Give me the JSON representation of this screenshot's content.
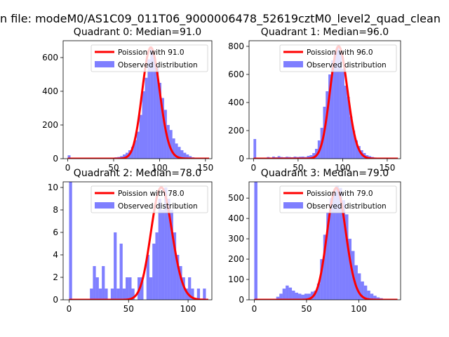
{
  "figure": {
    "suptitle": "n file: modeM0/AS1C09_011T06_9000006478_52619cztM0_level2_quad_clean"
  },
  "colors": {
    "bars": "#0000ff",
    "bar_alpha": 0.5,
    "line": "#ff0000"
  },
  "chart_data": [
    {
      "type": "bar",
      "title": "Quadrant 0: Median=91.0",
      "xlim": [
        -5,
        157
      ],
      "ylim": [
        0,
        700
      ],
      "xticks": [
        0,
        50,
        100,
        150
      ],
      "yticks": [
        0,
        200,
        400,
        600
      ],
      "legend": [
        "Poission with 91.0",
        "Observed distribution"
      ],
      "legend_position": "top-right",
      "median": 91,
      "bin_width": 3,
      "bars": [
        [
          0,
          20
        ],
        [
          33,
          2
        ],
        [
          36,
          3
        ],
        [
          39,
          3
        ],
        [
          42,
          4
        ],
        [
          45,
          5
        ],
        [
          48,
          6
        ],
        [
          51,
          8
        ],
        [
          54,
          10
        ],
        [
          57,
          15
        ],
        [
          60,
          25
        ],
        [
          63,
          35
        ],
        [
          66,
          50
        ],
        [
          69,
          70
        ],
        [
          72,
          110
        ],
        [
          75,
          160
        ],
        [
          78,
          260
        ],
        [
          81,
          400
        ],
        [
          84,
          480
        ],
        [
          87,
          590
        ],
        [
          90,
          650
        ],
        [
          93,
          600
        ],
        [
          96,
          540
        ],
        [
          99,
          450
        ],
        [
          102,
          360
        ],
        [
          105,
          290
        ],
        [
          108,
          200
        ],
        [
          111,
          170
        ],
        [
          114,
          120
        ],
        [
          117,
          90
        ],
        [
          120,
          70
        ],
        [
          123,
          50
        ],
        [
          126,
          35
        ],
        [
          129,
          25
        ],
        [
          132,
          15
        ],
        [
          135,
          8
        ],
        [
          138,
          5
        ],
        [
          141,
          3
        ],
        [
          144,
          2
        ],
        [
          147,
          1
        ]
      ],
      "poisson_peak": 660
    },
    {
      "type": "bar",
      "title": "Quadrant 1: Median=96.0",
      "xlim": [
        -5,
        165
      ],
      "ylim": [
        0,
        840
      ],
      "xticks": [
        0,
        50,
        100,
        150
      ],
      "yticks": [
        0,
        200,
        400,
        600,
        800
      ],
      "legend": [
        "Poission with 96.0",
        "Observed distribution"
      ],
      "legend_position": "top-right",
      "median": 96,
      "bin_width": 3,
      "bars": [
        [
          0,
          140
        ],
        [
          15,
          12
        ],
        [
          18,
          8
        ],
        [
          21,
          15
        ],
        [
          24,
          10
        ],
        [
          27,
          18
        ],
        [
          30,
          12
        ],
        [
          33,
          10
        ],
        [
          36,
          14
        ],
        [
          39,
          12
        ],
        [
          42,
          10
        ],
        [
          45,
          15
        ],
        [
          48,
          12
        ],
        [
          51,
          14
        ],
        [
          54,
          15
        ],
        [
          57,
          12
        ],
        [
          60,
          20
        ],
        [
          63,
          25
        ],
        [
          66,
          40
        ],
        [
          69,
          70
        ],
        [
          72,
          130
        ],
        [
          75,
          220
        ],
        [
          78,
          370
        ],
        [
          81,
          480
        ],
        [
          84,
          600
        ],
        [
          87,
          700
        ],
        [
          90,
          760
        ],
        [
          93,
          800
        ],
        [
          96,
          760
        ],
        [
          99,
          640
        ],
        [
          102,
          520
        ],
        [
          105,
          440
        ],
        [
          108,
          300
        ],
        [
          111,
          200
        ],
        [
          114,
          130
        ],
        [
          117,
          90
        ],
        [
          120,
          60
        ],
        [
          123,
          40
        ],
        [
          126,
          25
        ],
        [
          129,
          18
        ],
        [
          132,
          12
        ],
        [
          135,
          8
        ],
        [
          138,
          5
        ]
      ],
      "poisson_peak": 800
    },
    {
      "type": "bar",
      "title": "Quadrant 2: Median=78.0",
      "xlim": [
        -5,
        120
      ],
      "ylim": [
        0,
        10.5
      ],
      "xticks": [
        0,
        50,
        100
      ],
      "yticks": [
        0,
        2,
        4,
        6,
        8,
        10
      ],
      "legend": [
        "Poission with 78.0",
        "Observed distribution"
      ],
      "legend_position": "top-right",
      "median": 78,
      "bin_width": 2.5,
      "bars": [
        [
          0,
          10.5
        ],
        [
          17.5,
          1
        ],
        [
          20,
          3
        ],
        [
          22.5,
          2
        ],
        [
          25,
          1
        ],
        [
          27.5,
          3
        ],
        [
          30,
          1
        ],
        [
          32.5,
          0
        ],
        [
          35,
          1
        ],
        [
          37.5,
          6
        ],
        [
          40,
          1
        ],
        [
          42.5,
          5
        ],
        [
          45,
          1
        ],
        [
          47.5,
          2
        ],
        [
          50,
          2
        ],
        [
          52.5,
          1
        ],
        [
          55,
          0
        ],
        [
          57.5,
          2
        ],
        [
          60,
          2
        ],
        [
          62.5,
          0
        ],
        [
          65,
          4
        ],
        [
          67.5,
          2
        ],
        [
          70,
          5
        ],
        [
          72.5,
          6
        ],
        [
          75,
          9
        ],
        [
          77.5,
          8
        ],
        [
          80,
          10
        ],
        [
          82.5,
          9
        ],
        [
          85,
          8
        ],
        [
          87.5,
          6
        ],
        [
          90,
          4
        ],
        [
          92.5,
          3
        ],
        [
          95,
          2
        ],
        [
          97.5,
          1
        ],
        [
          100,
          2
        ],
        [
          102.5,
          1
        ],
        [
          105,
          0
        ],
        [
          107.5,
          1
        ],
        [
          110,
          0
        ],
        [
          112.5,
          1
        ]
      ],
      "poisson_peak": 10
    },
    {
      "type": "bar",
      "title": "Quadrant 3: Median=79.0",
      "xlim": [
        -5,
        140
      ],
      "ylim": [
        0,
        580
      ],
      "xticks": [
        0,
        50,
        100
      ],
      "yticks": [
        0,
        100,
        200,
        300,
        400,
        500
      ],
      "legend": [
        "Poission with 79.0",
        "Observed distribution"
      ],
      "legend_position": "top-right",
      "median": 79,
      "bin_width": 3,
      "bars": [
        [
          0,
          580
        ],
        [
          21,
          15
        ],
        [
          24,
          30
        ],
        [
          27,
          55
        ],
        [
          30,
          70
        ],
        [
          33,
          60
        ],
        [
          36,
          45
        ],
        [
          39,
          35
        ],
        [
          42,
          30
        ],
        [
          45,
          25
        ],
        [
          48,
          30
        ],
        [
          51,
          30
        ],
        [
          54,
          40
        ],
        [
          57,
          45
        ],
        [
          60,
          80
        ],
        [
          63,
          200
        ],
        [
          66,
          320
        ],
        [
          69,
          430
        ],
        [
          72,
          500
        ],
        [
          75,
          530
        ],
        [
          78,
          560
        ],
        [
          81,
          550
        ],
        [
          84,
          490
        ],
        [
          87,
          420
        ],
        [
          90,
          300
        ],
        [
          93,
          240
        ],
        [
          96,
          170
        ],
        [
          99,
          130
        ],
        [
          102,
          90
        ],
        [
          105,
          70
        ],
        [
          108,
          45
        ],
        [
          111,
          30
        ],
        [
          114,
          20
        ],
        [
          117,
          12
        ],
        [
          120,
          8
        ],
        [
          123,
          5
        ]
      ],
      "poisson_peak": 550
    }
  ]
}
